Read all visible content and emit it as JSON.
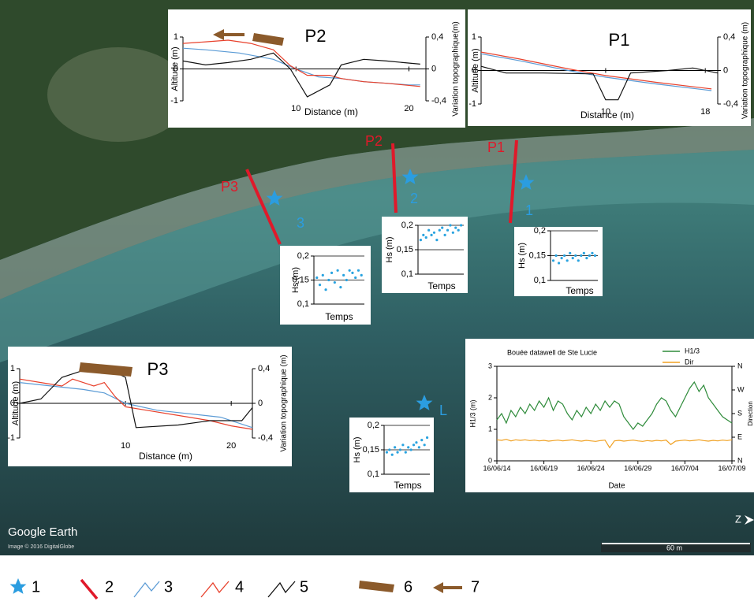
{
  "chart_data": [
    {
      "type": "line",
      "title": "P2",
      "xlabel": "Distance (m)",
      "ylabel": "Altitude (m)",
      "y2label": "Variation topographique(m)",
      "xlim": [
        0,
        21.5
      ],
      "xticks": [
        10,
        20
      ],
      "ylim": [
        -1,
        1
      ],
      "yticks": [
        -1,
        0,
        1
      ],
      "y2lim": [
        -0.4,
        0.4
      ],
      "y2ticks": [
        {
          "value": 0.4,
          "label": "0,4"
        },
        0,
        {
          "value": -0.4,
          "label": "-0,4"
        }
      ],
      "zeroline": true,
      "series": [
        {
          "color": "#5b9bd5",
          "x": [
            0,
            2,
            5,
            8,
            10,
            12,
            14,
            16,
            18,
            20,
            21
          ],
          "values": [
            0.65,
            0.6,
            0.5,
            0.3,
            0,
            -0.25,
            -0.3,
            -0.4,
            -0.45,
            -0.5,
            -0.5
          ]
        },
        {
          "color": "#e8412c",
          "x": [
            0,
            2,
            4,
            6,
            7,
            8,
            9.5,
            11,
            13,
            14,
            16,
            18,
            21
          ],
          "values": [
            0.8,
            0.85,
            0.9,
            0.8,
            0.7,
            0.6,
            0.1,
            -0.2,
            -0.2,
            -0.3,
            -0.4,
            -0.45,
            -0.55
          ]
        },
        {
          "color": "#111111",
          "axis": "y2",
          "x": [
            0,
            2,
            4,
            6,
            8,
            9.5,
            11,
            13,
            14,
            16,
            18,
            21
          ],
          "values": [
            0.1,
            0.05,
            0.08,
            0.12,
            0.2,
            0,
            -0.35,
            -0.2,
            0.05,
            0.12,
            0.1,
            0.06
          ]
        }
      ]
    },
    {
      "type": "line",
      "title": "P1",
      "xlabel": "Distance  (m)",
      "ylabel": "Altitude (m)",
      "y2label": "Variation topographique (m)",
      "xlim": [
        0,
        19
      ],
      "xticks": [
        10,
        18
      ],
      "ylim": [
        -1,
        1
      ],
      "yticks": [
        -1,
        0,
        1
      ],
      "y2lim": [
        -0.4,
        0.4
      ],
      "y2ticks": [
        {
          "value": 0.4,
          "label": "0,4"
        },
        0,
        {
          "value": -0.4,
          "label": "-0,4"
        }
      ],
      "zeroline": true,
      "series": [
        {
          "color": "#5b9bd5",
          "x": [
            0,
            3,
            7,
            10,
            14,
            18.5
          ],
          "values": [
            0.5,
            0.3,
            0,
            -0.2,
            -0.4,
            -0.6
          ]
        },
        {
          "color": "#e8412c",
          "x": [
            0,
            3,
            7,
            10,
            14,
            18.5
          ],
          "values": [
            0.55,
            0.35,
            0.05,
            -0.15,
            -0.35,
            -0.55
          ]
        },
        {
          "color": "#111111",
          "axis": "y2",
          "x": [
            0,
            2,
            5,
            9,
            10,
            11,
            12,
            15,
            17,
            19
          ],
          "values": [
            0.05,
            -0.03,
            -0.03,
            -0.04,
            -0.35,
            -0.35,
            -0.03,
            0,
            0.03,
            -0.03
          ]
        }
      ]
    },
    {
      "type": "line",
      "title": "P3",
      "xlabel": "Distance  (m)",
      "ylabel": "Altitude (m)",
      "y2label": "Variation topographique (m)",
      "xlim": [
        0,
        22
      ],
      "xticks": [
        10,
        20
      ],
      "ylim": [
        -1,
        1
      ],
      "yticks": [
        -1,
        0,
        1
      ],
      "y2lim": [
        -0.4,
        0.4
      ],
      "y2ticks": [
        {
          "value": 0.4,
          "label": "0,4"
        },
        0,
        {
          "value": -0.4,
          "label": "-0,4"
        }
      ],
      "zeroline": true,
      "series": [
        {
          "color": "#5b9bd5",
          "x": [
            0,
            3,
            6,
            8,
            10,
            13,
            16,
            19,
            22
          ],
          "values": [
            0.6,
            0.5,
            0.4,
            0.3,
            0,
            -0.2,
            -0.3,
            -0.4,
            -0.7
          ]
        },
        {
          "color": "#e8412c",
          "x": [
            0,
            2,
            4,
            5,
            6,
            7,
            8,
            9,
            10,
            12,
            15,
            18,
            20,
            22
          ],
          "values": [
            0.7,
            0.6,
            0.5,
            0.7,
            0.6,
            0.5,
            0.6,
            0.2,
            -0.1,
            -0.2,
            -0.35,
            -0.5,
            -0.65,
            -0.75
          ]
        },
        {
          "color": "#111111",
          "axis": "y2",
          "x": [
            0,
            2,
            4,
            6,
            8,
            9,
            10,
            11,
            15,
            18,
            21,
            22
          ],
          "values": [
            0,
            0.05,
            0.3,
            0.38,
            0.35,
            0.36,
            0.3,
            -0.28,
            -0.25,
            -0.2,
            -0.2,
            -0.05
          ]
        }
      ]
    },
    {
      "type": "scatter",
      "xlabel": "Temps",
      "ylabel": "Hs (m)",
      "xlim": [
        0,
        17
      ],
      "ylim": [
        0.1,
        0.2
      ],
      "grid": true,
      "yticks": [
        {
          "value": 0.1,
          "label": "0,1"
        },
        {
          "value": 0.15,
          "label": "0,15"
        },
        {
          "value": 0.2,
          "label": "0,2"
        }
      ],
      "series": [
        {
          "color": "#29a3e0",
          "x": [
            1,
            2,
            3,
            4,
            5,
            6,
            7,
            8,
            9,
            10,
            11,
            12,
            13,
            14,
            15,
            16
          ],
          "values": [
            0.155,
            0.14,
            0.16,
            0.13,
            0.15,
            0.165,
            0.145,
            0.17,
            0.135,
            0.16,
            0.15,
            0.17,
            0.165,
            0.155,
            0.17,
            0.16
          ]
        }
      ]
    },
    {
      "type": "scatter",
      "xlabel": "Temps",
      "ylabel": "Hs (m)",
      "xlim": [
        0,
        17
      ],
      "ylim": [
        0.1,
        0.2
      ],
      "grid": true,
      "yticks": [
        {
          "value": 0.1,
          "label": "0,1"
        },
        {
          "value": 0.15,
          "label": "0,15"
        },
        {
          "value": 0.2,
          "label": "0,2"
        }
      ],
      "series": [
        {
          "color": "#29a3e0",
          "x": [
            1,
            2,
            3,
            4,
            5,
            6,
            7,
            8,
            9,
            10,
            11,
            12,
            13,
            14,
            15,
            16
          ],
          "values": [
            0.17,
            0.18,
            0.175,
            0.19,
            0.18,
            0.185,
            0.17,
            0.19,
            0.195,
            0.18,
            0.19,
            0.2,
            0.185,
            0.195,
            0.19,
            0.2
          ]
        }
      ]
    },
    {
      "type": "scatter",
      "xlabel": "Temps",
      "ylabel": "Hs (m)",
      "xlim": [
        0,
        17
      ],
      "ylim": [
        0.1,
        0.2
      ],
      "grid": true,
      "yticks": [
        {
          "value": 0.1,
          "label": "0,1"
        },
        {
          "value": 0.15,
          "label": "0,15"
        },
        {
          "value": 0.2,
          "label": "0,2"
        }
      ],
      "series": [
        {
          "color": "#29a3e0",
          "x": [
            1,
            2,
            3,
            4,
            5,
            6,
            7,
            8,
            9,
            10,
            11,
            12,
            13,
            14,
            15,
            16
          ],
          "values": [
            0.14,
            0.15,
            0.135,
            0.145,
            0.15,
            0.14,
            0.155,
            0.145,
            0.15,
            0.14,
            0.15,
            0.155,
            0.145,
            0.15,
            0.155,
            0.15
          ]
        }
      ]
    },
    {
      "type": "scatter",
      "xlabel": "Temps",
      "ylabel": "Hs (m)",
      "xlim": [
        0,
        17
      ],
      "ylim": [
        0.1,
        0.2
      ],
      "grid": true,
      "yticks": [
        {
          "value": 0.1,
          "label": "0,1"
        },
        {
          "value": 0.15,
          "label": "0,15"
        },
        {
          "value": 0.2,
          "label": "0,2"
        }
      ],
      "series": [
        {
          "color": "#29a3e0",
          "x": [
            1,
            2,
            3,
            4,
            5,
            6,
            7,
            8,
            9,
            10,
            11,
            12,
            13,
            14,
            15,
            16
          ],
          "values": [
            0.145,
            0.15,
            0.14,
            0.155,
            0.145,
            0.15,
            0.16,
            0.145,
            0.155,
            0.15,
            0.16,
            0.165,
            0.155,
            0.17,
            0.16,
            0.175
          ]
        }
      ]
    },
    {
      "type": "line",
      "title": "Bouée datawell de Ste Lucie",
      "xlabel": "Date",
      "ylabel": "H1/3 (m)",
      "y2label": "Direction",
      "xlim": [
        0,
        25
      ],
      "xticks": [
        {
          "value": 0,
          "label": "16/06/14"
        },
        {
          "value": 5,
          "label": "16/06/19"
        },
        {
          "value": 10,
          "label": "16/06/24"
        },
        {
          "value": 15,
          "label": "16/06/29"
        },
        {
          "value": 20,
          "label": "16/07/04"
        },
        {
          "value": 25,
          "label": "16/07/09"
        }
      ],
      "ylim": [
        0,
        3
      ],
      "yticks": [
        0,
        1,
        2,
        3
      ],
      "y2lim": [
        0,
        360
      ],
      "y2ticks": [
        {
          "value": 0,
          "label": "N"
        },
        {
          "value": 90,
          "label": "E"
        },
        {
          "value": 180,
          "label": "S"
        },
        {
          "value": 270,
          "label": "W"
        },
        {
          "value": 360,
          "label": "N"
        }
      ],
      "series": [
        {
          "name": "H1/3",
          "color": "#2e8b3a",
          "x": [
            0,
            0.5,
            1,
            1.5,
            2,
            2.5,
            3,
            3.5,
            4,
            4.5,
            5,
            5.5,
            6,
            6.5,
            7,
            7.5,
            8,
            8.5,
            9,
            9.5,
            10,
            10.5,
            11,
            11.5,
            12,
            12.5,
            13,
            13.5,
            14,
            14.5,
            15,
            15.5,
            16,
            16.5,
            17,
            17.5,
            18,
            18.5,
            19,
            19.5,
            20,
            20.5,
            21,
            21.5,
            22,
            22.5,
            23,
            23.5,
            24,
            24.5,
            25
          ],
          "values": [
            1.3,
            1.5,
            1.2,
            1.6,
            1.4,
            1.7,
            1.5,
            1.8,
            1.6,
            1.9,
            1.7,
            2.0,
            1.6,
            1.9,
            1.8,
            1.5,
            1.3,
            1.6,
            1.4,
            1.7,
            1.5,
            1.8,
            1.6,
            1.9,
            1.7,
            1.9,
            1.8,
            1.4,
            1.2,
            1.0,
            1.2,
            1.1,
            1.3,
            1.5,
            1.8,
            2.0,
            1.9,
            1.6,
            1.4,
            1.7,
            2.0,
            2.3,
            2.5,
            2.2,
            2.4,
            2.0,
            1.8,
            1.6,
            1.4,
            1.3,
            1.2
          ]
        },
        {
          "name": "Dir",
          "color": "#f0a020",
          "axis": "y2",
          "x": [
            0,
            0.5,
            1,
            1.5,
            2,
            2.5,
            3,
            3.5,
            4,
            4.5,
            5,
            5.5,
            6,
            6.5,
            7,
            7.5,
            8,
            8.5,
            9,
            9.5,
            10,
            10.5,
            11,
            11.5,
            12,
            12.5,
            13,
            13.5,
            14,
            14.5,
            15,
            15.5,
            16,
            16.5,
            17,
            17.5,
            18,
            18.5,
            19,
            19.5,
            20,
            20.5,
            21,
            21.5,
            22,
            22.5,
            23,
            23.5,
            24,
            24.5,
            25
          ],
          "values": [
            80,
            78,
            82,
            76,
            80,
            78,
            80,
            77,
            79,
            76,
            78,
            75,
            77,
            79,
            76,
            78,
            80,
            77,
            75,
            78,
            76,
            74,
            77,
            79,
            50,
            76,
            78,
            75,
            77,
            79,
            76,
            74,
            77,
            75,
            78,
            76,
            79,
            62,
            75,
            77,
            79,
            76,
            78,
            80,
            77,
            75,
            78,
            76,
            79,
            77,
            80
          ]
        }
      ]
    }
  ],
  "map": {
    "profiles": [
      "P1",
      "P2",
      "P3"
    ],
    "stations": [
      "1",
      "2",
      "3",
      "L"
    ],
    "brand": "Google Earth",
    "credit": "Image © 2016 DigitalGlobe",
    "scale": "60 m",
    "north": "Z"
  },
  "legend": [
    "1",
    "2",
    "3",
    "4",
    "5",
    "6",
    "7"
  ]
}
